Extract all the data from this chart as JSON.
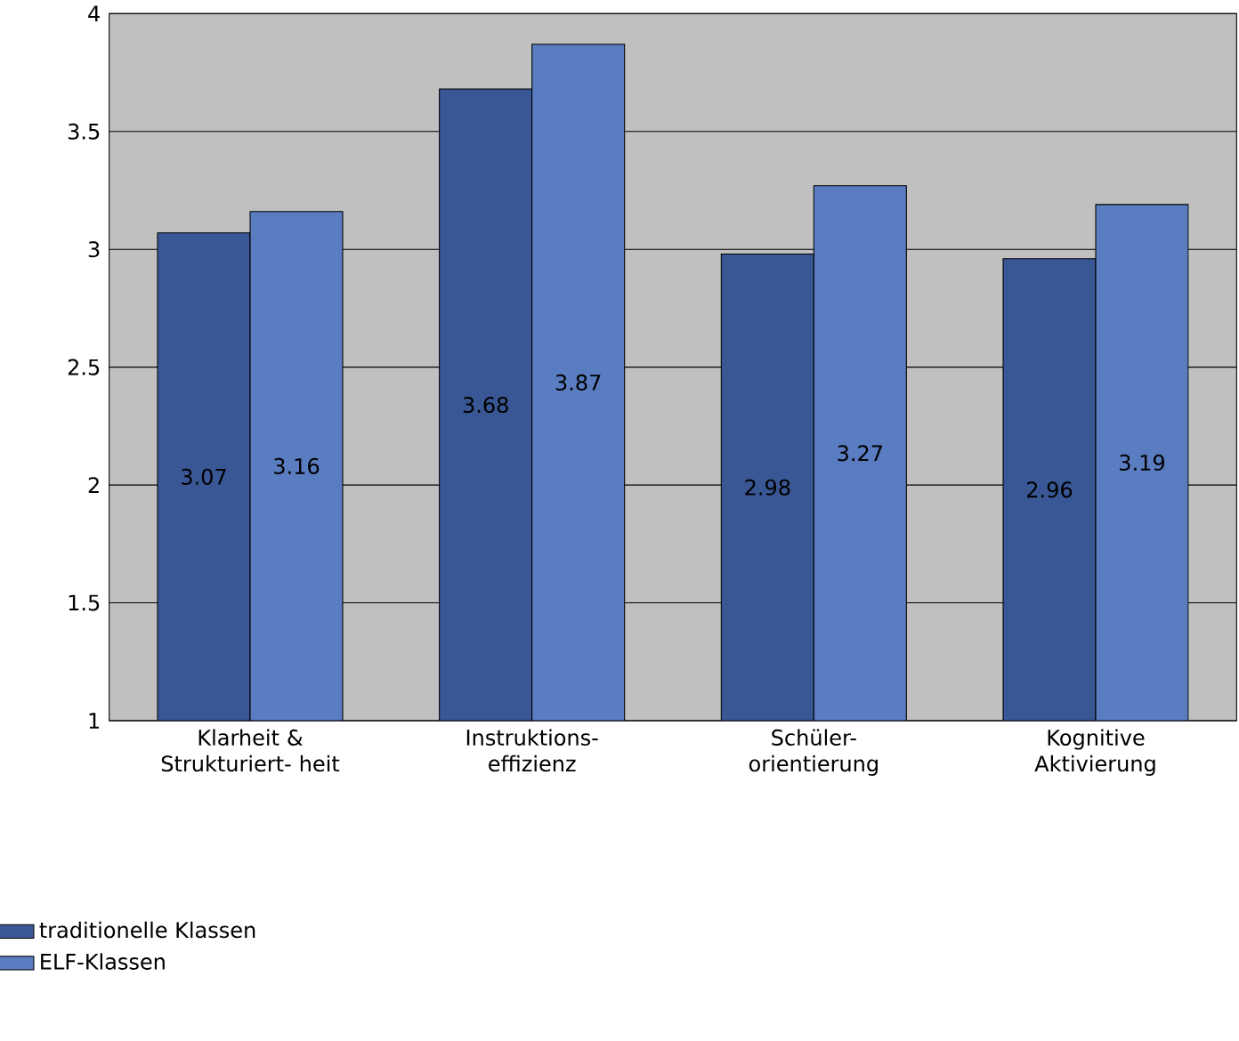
{
  "chart_data": {
    "type": "bar",
    "categories": [
      "Klarheit & Strukturiert- heit",
      "Instruktions- effizienz",
      "Schüler- orientierung",
      "Kognitive Aktivierung"
    ],
    "series": [
      {
        "name": "traditionelle Klassen",
        "color": "#3a5795",
        "values": [
          3.07,
          3.68,
          2.98,
          2.96
        ]
      },
      {
        "name": "ELF-Klassen",
        "color": "#5a7cc0",
        "values": [
          3.16,
          3.87,
          3.27,
          3.19
        ]
      }
    ],
    "ylim": [
      1,
      4
    ],
    "yticks": [
      1,
      1.5,
      2,
      2.5,
      3,
      3.5,
      4
    ],
    "grid": "y",
    "legend": "bottom left",
    "data_labels": true
  }
}
